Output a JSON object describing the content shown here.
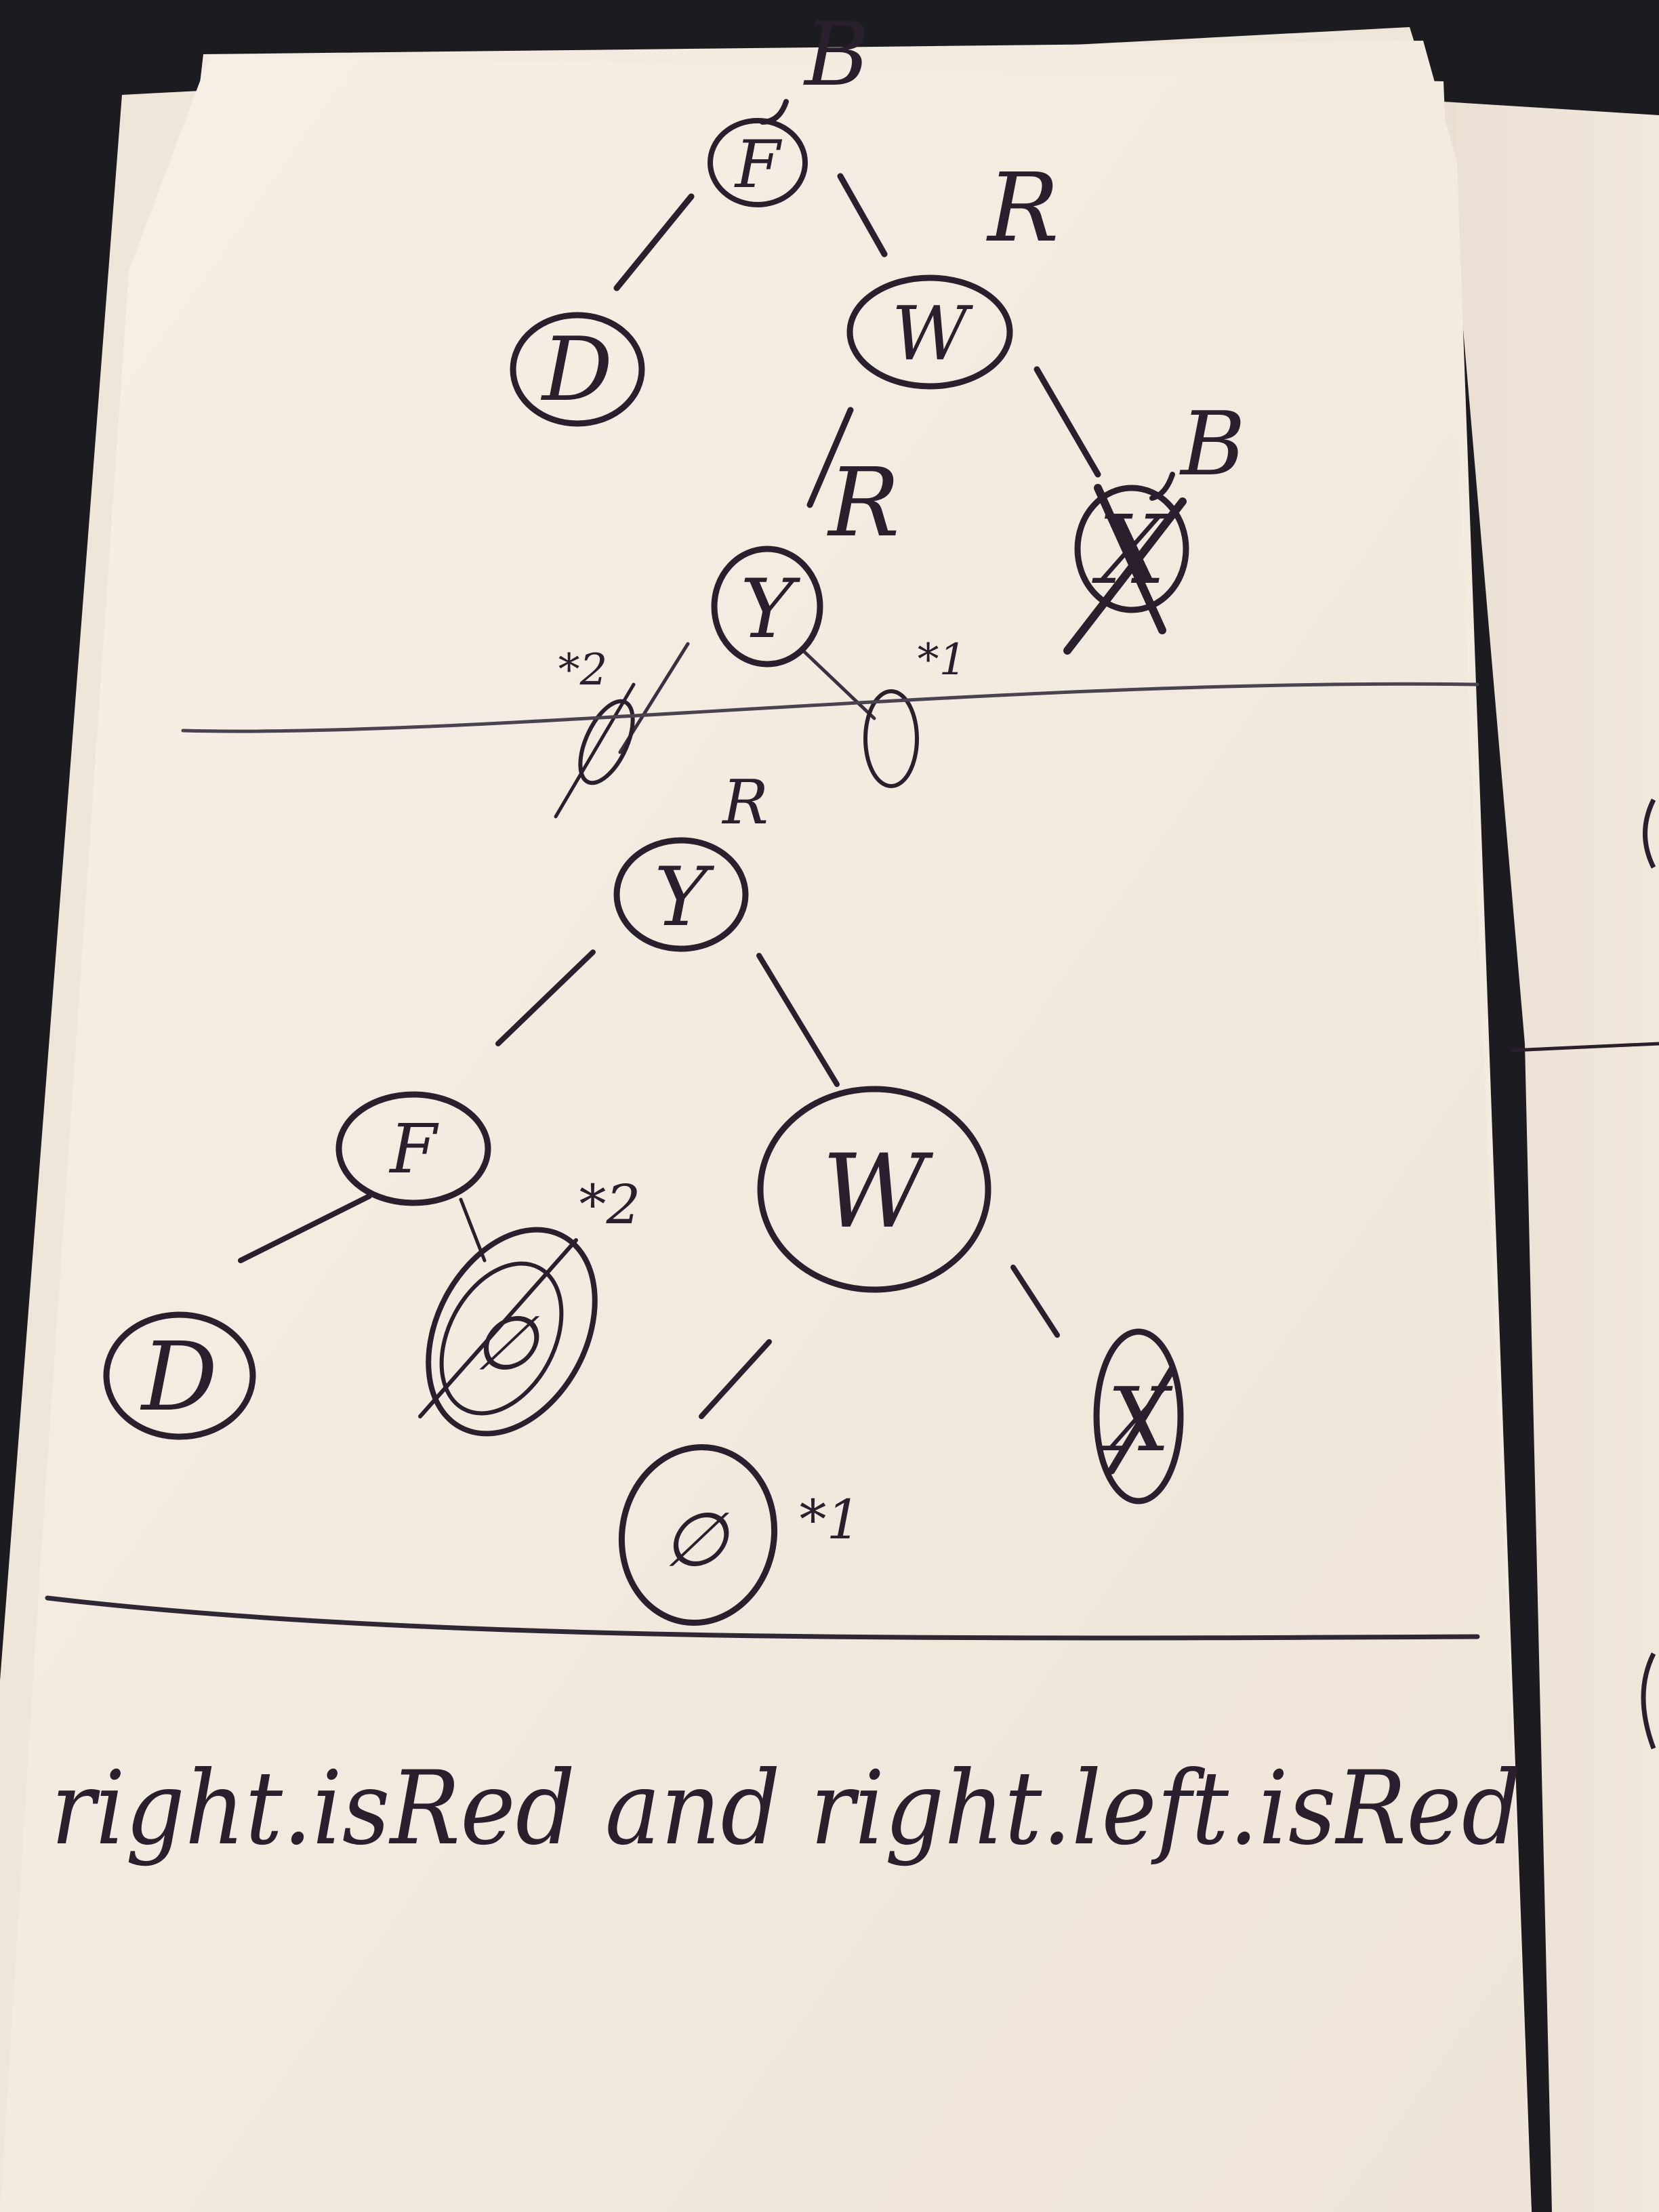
{
  "tree1": {
    "root": {
      "label": "F",
      "color": "B"
    },
    "left": {
      "label": "D"
    },
    "right": {
      "label": "W",
      "color": "R"
    },
    "right_left": {
      "label": "Y",
      "color": "R"
    },
    "right_right": {
      "label": "X",
      "color": "B"
    },
    "null_left": {
      "mark": "*2"
    },
    "null_right": {
      "mark": "*1"
    }
  },
  "tree2": {
    "root": {
      "label": "Y",
      "color": "R"
    },
    "left": {
      "label": "F"
    },
    "right": {
      "label": "W"
    },
    "left_left": {
      "label": "D"
    },
    "left_right": {
      "label": "∅",
      "mark": "*2"
    },
    "right_left": {
      "label": "∅",
      "mark": "*1"
    },
    "right_right": {
      "label": "X"
    }
  },
  "caption": "right.isRed and right.left.isRed",
  "ink_color": "#2a1f2c",
  "paper_color": "#f4ece2"
}
